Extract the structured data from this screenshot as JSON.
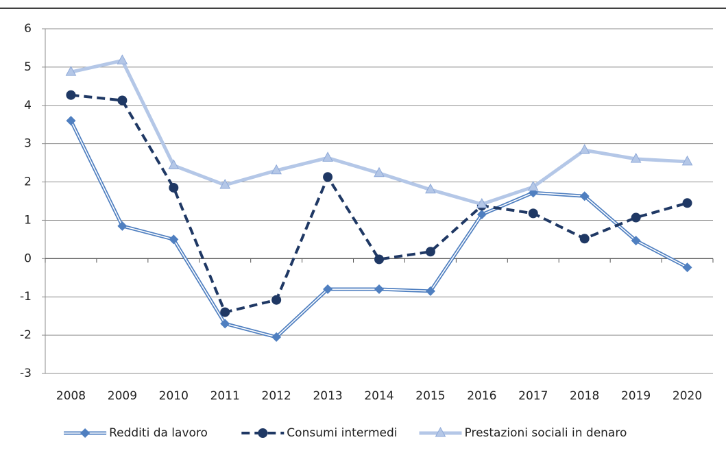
{
  "chart_data": {
    "type": "line",
    "categories": [
      "2008",
      "2009",
      "2010",
      "2011",
      "2012",
      "2013",
      "2014",
      "2015",
      "2016",
      "2017",
      "2018",
      "2019",
      "2020"
    ],
    "series": [
      {
        "name": "Redditi da lavoro",
        "color": "#4f7fc0",
        "marker": "diamond",
        "line": "double",
        "values": [
          3.6,
          0.85,
          0.5,
          -1.7,
          -2.05,
          -0.8,
          -0.8,
          -0.85,
          1.15,
          1.72,
          1.63,
          0.47,
          -0.23
        ]
      },
      {
        "name": "Consumi intermedi",
        "color": "#1f3864",
        "marker": "circle",
        "line": "dashed",
        "values": [
          4.27,
          4.13,
          1.85,
          -1.4,
          -1.08,
          2.13,
          -0.02,
          0.18,
          1.38,
          1.18,
          0.52,
          1.07,
          1.45
        ]
      },
      {
        "name": "Prestazioni sociali in denaro",
        "color": "#b4c7e7",
        "marker": "triangle",
        "line": "solid",
        "values": [
          4.87,
          5.17,
          2.43,
          1.92,
          2.3,
          2.63,
          2.23,
          1.8,
          1.42,
          1.87,
          2.83,
          2.6,
          2.53
        ]
      }
    ],
    "ylim": [
      -3,
      6
    ],
    "yticks": [
      -3,
      -2,
      -1,
      0,
      1,
      2,
      3,
      4,
      5,
      6
    ],
    "grid": true,
    "legend": "bottom"
  }
}
